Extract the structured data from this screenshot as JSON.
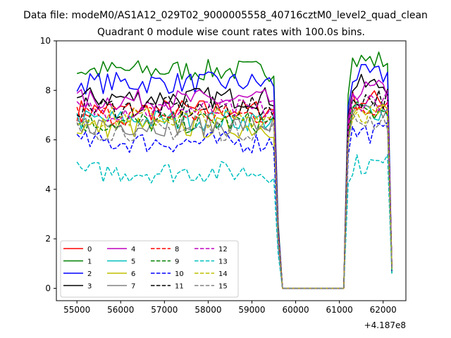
{
  "figure": {
    "suptitle": "Data file: modeM0/AS1A12_029T02_9000005558_40716cztM0_level2_quad_clean",
    "offset_label": "+4.187e8"
  },
  "chart_data": {
    "type": "line",
    "title": "Quadrant 0 module wise count rates with 100.0s bins.",
    "xlabel": "",
    "ylabel": "",
    "x_offset": 418700000,
    "xlim": [
      54530,
      62520
    ],
    "ylim": [
      -0.5,
      10.0
    ],
    "x_ticks": [
      55000,
      56000,
      57000,
      58000,
      59000,
      60000,
      61000,
      62000
    ],
    "x_tick_labels": [
      "55000",
      "56000",
      "57000",
      "58000",
      "59000",
      "60000",
      "61000",
      "62000"
    ],
    "y_ticks": [
      0,
      2,
      4,
      6,
      8,
      10
    ],
    "y_tick_labels": [
      "0",
      "2",
      "4",
      "6",
      "8",
      "10"
    ],
    "grid": false,
    "legend_position": "lower-left",
    "legend_columns": 4,
    "segments": [
      {
        "x_start": 55000,
        "x_end": 59600,
        "step": 100
      },
      {
        "x_start": 59700,
        "x_end": 61100,
        "step": 100
      },
      {
        "x_start": 61200,
        "x_end": 62200,
        "step": 100
      }
    ],
    "series": [
      {
        "name": "0",
        "color": "#ff0000",
        "dash": "solid",
        "seg1_level": 7.2,
        "seg3_level": 7.6,
        "end_value": 0.9
      },
      {
        "name": "1",
        "color": "#008000",
        "dash": "solid",
        "seg1_level": 8.8,
        "seg3_level": 9.2,
        "end_value": 0.6
      },
      {
        "name": "2",
        "color": "#0000ff",
        "dash": "solid",
        "seg1_level": 8.3,
        "seg3_level": 8.6,
        "end_value": 0.8
      },
      {
        "name": "3",
        "color": "#000000",
        "dash": "solid",
        "seg1_level": 7.7,
        "seg3_level": 8.2,
        "end_value": 0.8
      },
      {
        "name": "4",
        "color": "#bf00bf",
        "dash": "solid",
        "seg1_level": 7.6,
        "seg3_level": 8.0,
        "end_value": 0.8
      },
      {
        "name": "5",
        "color": "#00bfbf",
        "dash": "solid",
        "seg1_level": 6.8,
        "seg3_level": 7.2,
        "end_value": 0.8
      },
      {
        "name": "6",
        "color": "#bfbf00",
        "dash": "solid",
        "seg1_level": 6.5,
        "seg3_level": 7.0,
        "end_value": 0.8
      },
      {
        "name": "7",
        "color": "#808080",
        "dash": "solid",
        "seg1_level": 6.6,
        "seg3_level": 7.1,
        "end_value": 0.8
      },
      {
        "name": "8",
        "color": "#ff0000",
        "dash": "dashed",
        "seg1_level": 7.0,
        "seg3_level": 7.4,
        "end_value": 0.8
      },
      {
        "name": "9",
        "color": "#008000",
        "dash": "dashed",
        "seg1_level": 6.7,
        "seg3_level": 7.1,
        "end_value": 0.8
      },
      {
        "name": "10",
        "color": "#0000ff",
        "dash": "dashed",
        "seg1_level": 5.9,
        "seg3_level": 6.3,
        "end_value": 0.7
      },
      {
        "name": "11",
        "color": "#000000",
        "dash": "dashed",
        "seg1_level": 7.3,
        "seg3_level": 7.7,
        "end_value": 0.8
      },
      {
        "name": "12",
        "color": "#bf00bf",
        "dash": "dashed",
        "seg1_level": 7.2,
        "seg3_level": 7.6,
        "end_value": 0.8
      },
      {
        "name": "13",
        "color": "#00bfbf",
        "dash": "dashed",
        "seg1_level": 4.7,
        "seg3_level": 5.0,
        "end_value": 0.6
      },
      {
        "name": "14",
        "color": "#bfbf00",
        "dash": "dashed",
        "seg1_level": 6.9,
        "seg3_level": 7.1,
        "end_value": 0.8
      },
      {
        "name": "15",
        "color": "#808080",
        "dash": "dashed",
        "seg1_level": 6.4,
        "seg3_level": 6.8,
        "end_value": 0.8
      }
    ]
  }
}
